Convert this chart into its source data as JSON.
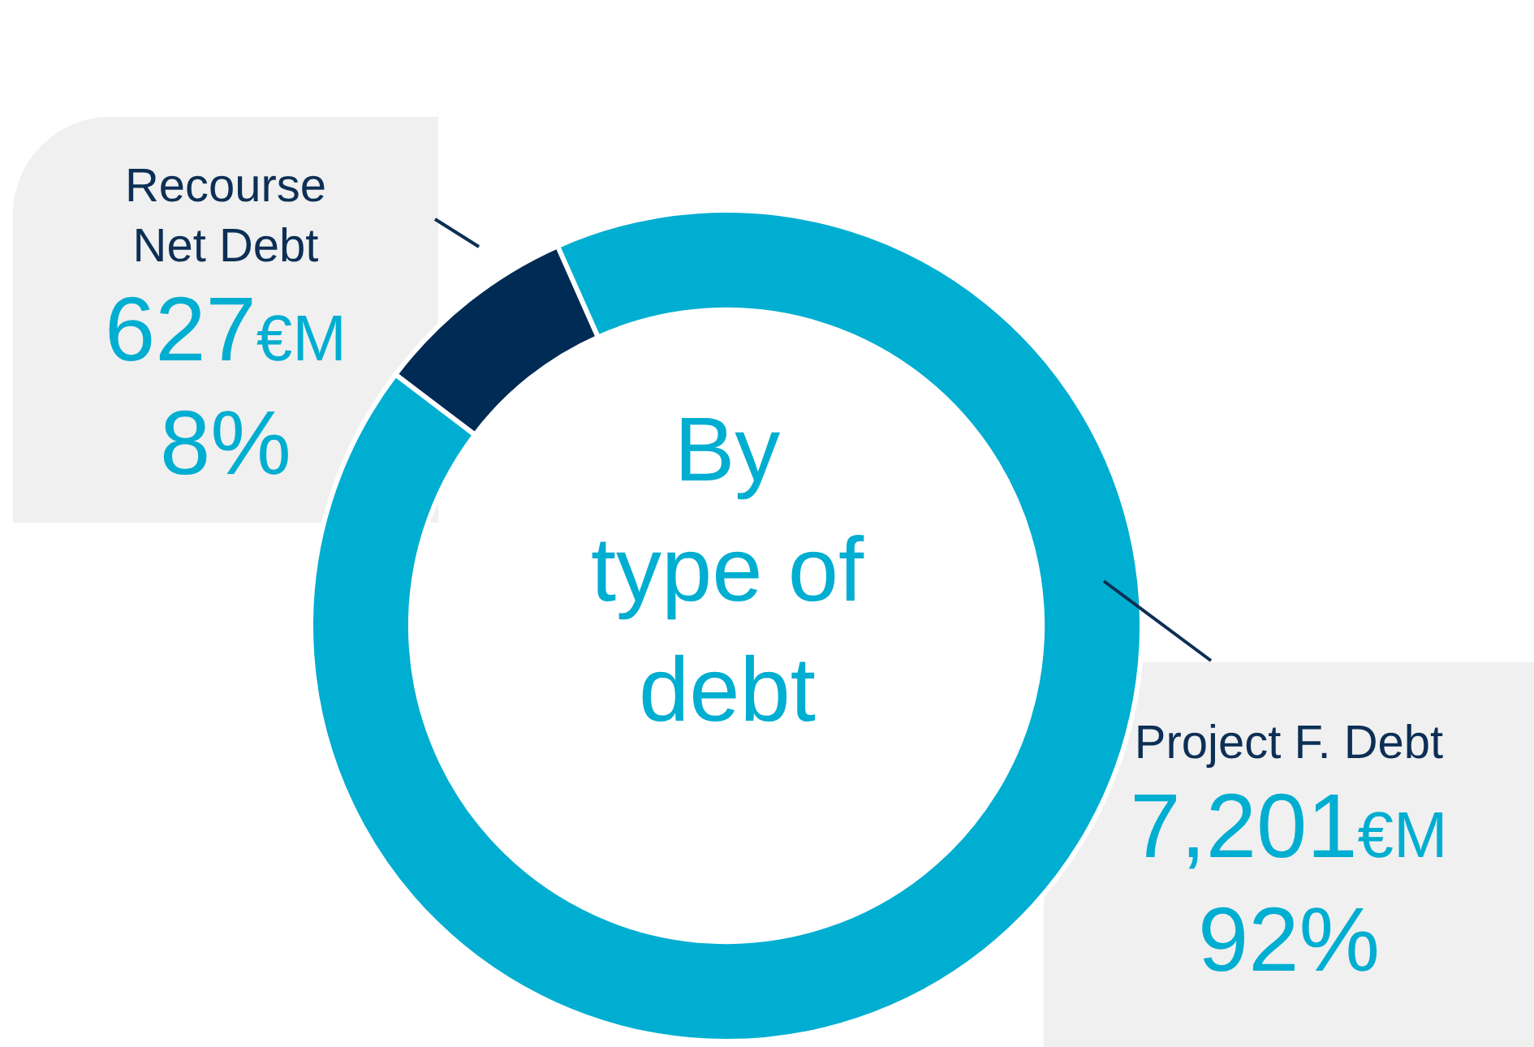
{
  "chart_data": {
    "type": "donut",
    "title": "By type of debt",
    "categories": [
      "Recourse Net Debt",
      "Project F. Debt"
    ],
    "values": [
      627,
      7201
    ],
    "colors": [
      "#002b54",
      "#00aed1"
    ],
    "value_labels": [
      "627€M",
      "7,201€M"
    ],
    "annotations": [
      "8%",
      "92%"
    ],
    "legend": false
  }
}
